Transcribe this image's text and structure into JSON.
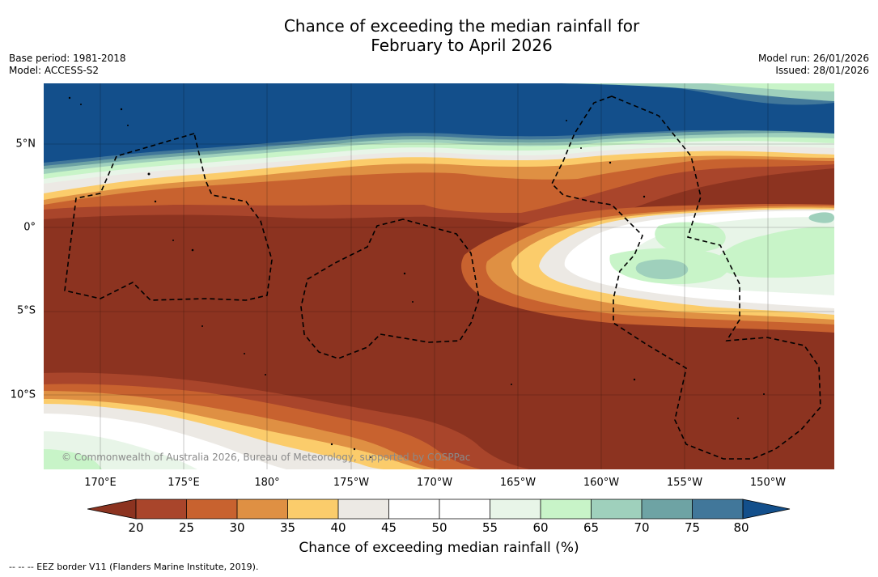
{
  "title": {
    "line1": "Chance of exceeding the median rainfall for",
    "line2": "February to April 2026"
  },
  "meta": {
    "base_period": "Base period: 1981-2018",
    "model": "Model: ACCESS-S2",
    "model_run": "Model run: 26/01/2026",
    "issued": "Issued: 28/01/2026"
  },
  "map": {
    "lat_labels": [
      "5°N",
      "0°",
      "5°S",
      "10°S"
    ],
    "lon_labels": [
      "170°E",
      "175°E",
      "180°",
      "175°W",
      "170°W",
      "165°W",
      "160°W",
      "155°W",
      "150°W"
    ],
    "copyright": "© Commonwealth of Australia 2026, Bureau of Meteorology, supported by COSPPac"
  },
  "colorbar": {
    "ticks": [
      "20",
      "25",
      "30",
      "35",
      "40",
      "45",
      "50",
      "55",
      "60",
      "65",
      "70",
      "75",
      "80"
    ],
    "colors": {
      "lt20": "#8c3320",
      "b20_25": "#a9452b",
      "b25_30": "#c8622f",
      "b30_35": "#df9043",
      "b35_40": "#fbcc6b",
      "b40_45": "#ece9e4",
      "b45_50": "#ffffff",
      "b50_55": "#ffffff",
      "b55_60": "#e8f5e8",
      "b60_65": "#c8f4c8",
      "b65_70": "#9fd0bc",
      "b70_75": "#6ea3a4",
      "b75_80": "#41779a",
      "gt80": "#134f8b"
    },
    "label": "Chance of exceeding median rainfall (%)"
  },
  "footnote": "--  --  -- EEZ border V11 (Flanders Marine Institute, 2019)."
}
